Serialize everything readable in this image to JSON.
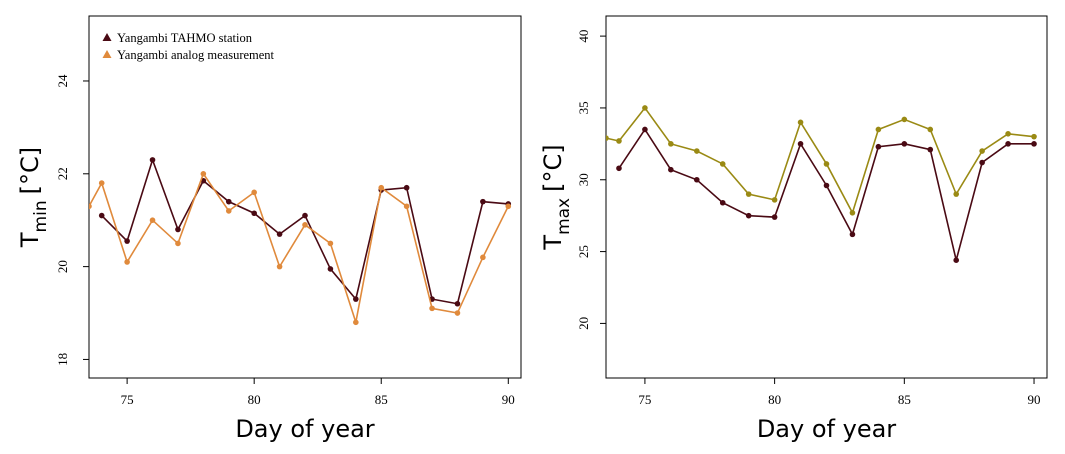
{
  "chart_data": [
    {
      "type": "line",
      "xlabel": "Day of year",
      "ylabel_main": "T",
      "ylabel_sub": "min",
      "ylabel_unit": "[°C]",
      "xlim": [
        73.5,
        90.5
      ],
      "ylim": [
        17.6,
        25.4
      ],
      "xticks": [
        75,
        80,
        85,
        90
      ],
      "yticks": [
        18,
        20,
        22,
        24
      ],
      "grid": false,
      "legend_position": "top-left",
      "series": [
        {
          "name": "Yangambi TAHMO station",
          "color": "#4a0a14",
          "marker": "triangle",
          "x": [
            74,
            75,
            76,
            77,
            78,
            79,
            80,
            81,
            82,
            83,
            84,
            85,
            86,
            87,
            88,
            89,
            90
          ],
          "y": [
            21.1,
            20.55,
            22.3,
            20.8,
            21.85,
            21.4,
            21.15,
            20.7,
            21.1,
            19.95,
            19.3,
            21.65,
            21.7,
            19.3,
            19.2,
            21.4,
            21.35
          ]
        },
        {
          "name": "Yangambi analog measurement",
          "color": "#e08a3c",
          "marker": "triangle",
          "x": [
            73.5,
            74,
            75,
            76,
            77,
            78,
            79,
            80,
            81,
            82,
            83,
            84,
            85,
            86,
            87,
            88,
            89,
            90
          ],
          "y": [
            21.3,
            21.8,
            20.1,
            21.0,
            20.5,
            22.0,
            21.2,
            21.6,
            20.0,
            20.9,
            20.5,
            18.8,
            21.7,
            21.3,
            19.1,
            19.0,
            20.2,
            21.3
          ]
        }
      ]
    },
    {
      "type": "line",
      "xlabel": "Day of year",
      "ylabel_main": "T",
      "ylabel_sub": "max",
      "ylabel_unit": "[°C]",
      "xlim": [
        73.5,
        90.5
      ],
      "ylim": [
        16.2,
        41.4
      ],
      "xticks": [
        75,
        80,
        85,
        90
      ],
      "yticks": [
        20,
        25,
        30,
        35,
        40
      ],
      "grid": false,
      "series": [
        {
          "color": "#4a0a14",
          "x": [
            74,
            75,
            76,
            77,
            78,
            79,
            80,
            81,
            82,
            83,
            84,
            85,
            86,
            87,
            88,
            89,
            90
          ],
          "y": [
            30.8,
            33.5,
            30.7,
            30.0,
            28.4,
            27.5,
            27.4,
            32.5,
            29.6,
            26.2,
            32.3,
            32.5,
            32.1,
            24.4,
            31.2,
            32.5,
            32.5
          ]
        },
        {
          "color": "#9a8a14",
          "x": [
            73.5,
            74,
            75,
            76,
            77,
            78,
            79,
            80,
            81,
            82,
            83,
            84,
            85,
            86,
            87,
            88,
            89,
            90
          ],
          "y": [
            32.9,
            32.7,
            35.0,
            32.5,
            32.0,
            31.1,
            29.0,
            28.6,
            34.0,
            31.1,
            27.7,
            33.5,
            34.2,
            33.5,
            29.0,
            32.0,
            33.2,
            33.0
          ]
        }
      ]
    }
  ]
}
